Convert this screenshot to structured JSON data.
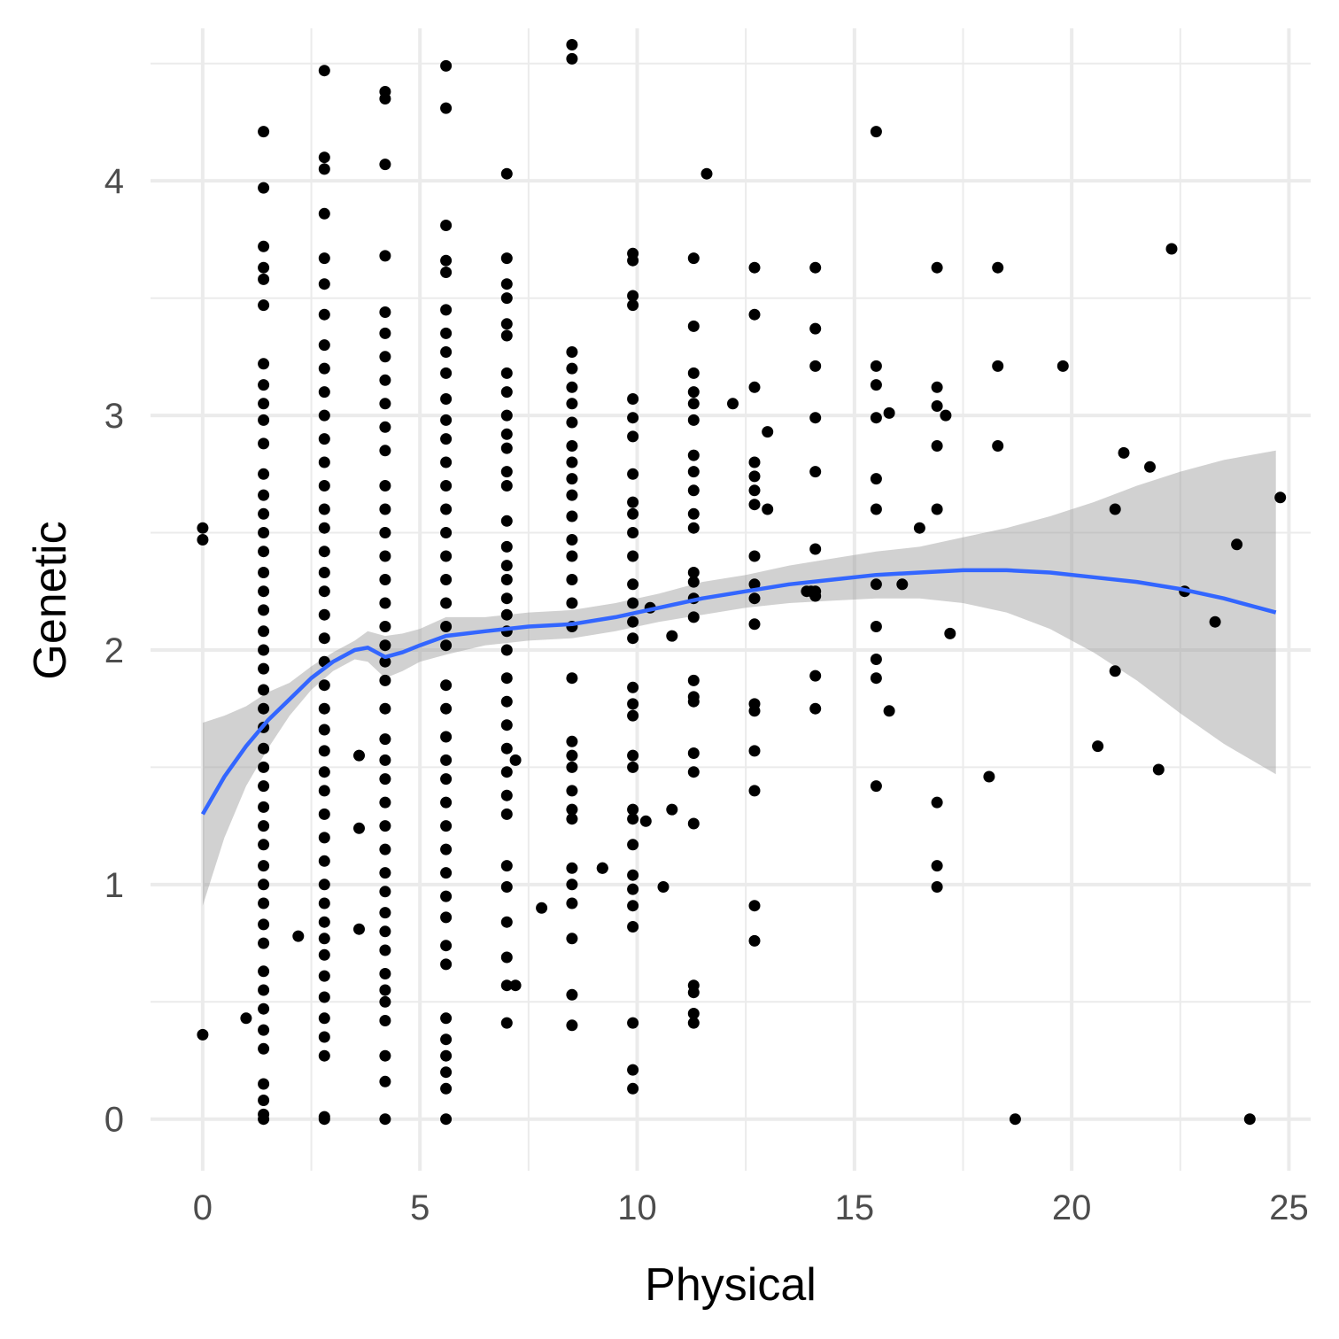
{
  "chart_data": {
    "type": "scatter",
    "title": "",
    "xlabel": "Physical",
    "ylabel": "Genetic",
    "xlim": [
      -1.2,
      25.5
    ],
    "ylim": [
      -0.22,
      4.65
    ],
    "x_ticks": [
      0,
      5,
      10,
      15,
      20,
      25
    ],
    "y_ticks": [
      0,
      1,
      2,
      3,
      4
    ],
    "x_tick_labels": [
      "0",
      "5",
      "10",
      "15",
      "20",
      "25"
    ],
    "y_tick_labels": [
      "0",
      "1",
      "2",
      "3",
      "4"
    ],
    "grid": true,
    "legend": "none",
    "point_color": "#000000",
    "smooth_color": "#3366FF",
    "band_color": "#999999",
    "points": [
      [
        0,
        2.52
      ],
      [
        0,
        2.47
      ],
      [
        0,
        0.36
      ],
      [
        1.0,
        0.43
      ],
      [
        2.2,
        0.78
      ],
      [
        3.6,
        1.55
      ],
      [
        3.6,
        1.24
      ],
      [
        3.6,
        0.81
      ],
      [
        7.2,
        1.53
      ],
      [
        7.2,
        0.57
      ],
      [
        7.8,
        0.9
      ],
      [
        9.2,
        1.07
      ],
      [
        10.2,
        1.27
      ],
      [
        10.3,
        2.18
      ],
      [
        10.6,
        0.99
      ],
      [
        10.8,
        2.06
      ],
      [
        10.8,
        1.32
      ],
      [
        11.6,
        4.03
      ],
      [
        12.2,
        3.05
      ],
      [
        13.0,
        2.93
      ],
      [
        13.0,
        2.6
      ],
      [
        13.9,
        2.25
      ],
      [
        14.0,
        2.25
      ],
      [
        15.8,
        3.01
      ],
      [
        15.8,
        1.74
      ],
      [
        16.1,
        2.28
      ],
      [
        16.5,
        2.52
      ],
      [
        17.1,
        3.0
      ],
      [
        17.2,
        2.07
      ],
      [
        18.1,
        1.46
      ],
      [
        18.7,
        0.0
      ],
      [
        19.8,
        3.21
      ],
      [
        20.6,
        1.59
      ],
      [
        21.0,
        2.6
      ],
      [
        21.0,
        1.91
      ],
      [
        21.2,
        2.84
      ],
      [
        21.8,
        2.78
      ],
      [
        22.0,
        1.49
      ],
      [
        22.3,
        3.71
      ],
      [
        22.6,
        2.25
      ],
      [
        23.3,
        2.12
      ],
      [
        23.8,
        2.45
      ],
      [
        24.1,
        0.0
      ],
      [
        24.8,
        2.65
      ],
      [
        9.2,
        1.07
      ],
      [
        1.4,
        4.21
      ],
      [
        1.4,
        3.97
      ],
      [
        1.4,
        3.72
      ],
      [
        1.4,
        3.63
      ],
      [
        1.4,
        3.58
      ],
      [
        1.4,
        3.47
      ],
      [
        1.4,
        3.22
      ],
      [
        1.4,
        3.13
      ],
      [
        1.4,
        3.05
      ],
      [
        1.4,
        2.98
      ],
      [
        1.4,
        2.88
      ],
      [
        1.4,
        2.75
      ],
      [
        1.4,
        2.66
      ],
      [
        1.4,
        2.58
      ],
      [
        1.4,
        2.5
      ],
      [
        1.4,
        2.42
      ],
      [
        1.4,
        2.33
      ],
      [
        1.4,
        2.25
      ],
      [
        1.4,
        2.17
      ],
      [
        1.4,
        2.08
      ],
      [
        1.4,
        2.0
      ],
      [
        1.4,
        1.92
      ],
      [
        1.4,
        1.83
      ],
      [
        1.4,
        1.75
      ],
      [
        1.4,
        1.67
      ],
      [
        1.4,
        1.58
      ],
      [
        1.4,
        1.5
      ],
      [
        1.4,
        1.42
      ],
      [
        1.4,
        1.33
      ],
      [
        1.4,
        1.25
      ],
      [
        1.4,
        1.17
      ],
      [
        1.4,
        1.08
      ],
      [
        1.4,
        1.0
      ],
      [
        1.4,
        0.92
      ],
      [
        1.4,
        0.83
      ],
      [
        1.4,
        0.75
      ],
      [
        1.4,
        0.63
      ],
      [
        1.4,
        0.55
      ],
      [
        1.4,
        0.47
      ],
      [
        1.4,
        0.38
      ],
      [
        1.4,
        0.3
      ],
      [
        1.4,
        0.15
      ],
      [
        1.4,
        0.08
      ],
      [
        1.4,
        0.02
      ],
      [
        1.4,
        0.0
      ],
      [
        2.8,
        4.47
      ],
      [
        2.8,
        4.1
      ],
      [
        2.8,
        4.05
      ],
      [
        2.8,
        3.86
      ],
      [
        2.8,
        3.67
      ],
      [
        2.8,
        3.56
      ],
      [
        2.8,
        3.43
      ],
      [
        2.8,
        3.3
      ],
      [
        2.8,
        3.2
      ],
      [
        2.8,
        3.1
      ],
      [
        2.8,
        3.0
      ],
      [
        2.8,
        2.9
      ],
      [
        2.8,
        2.8
      ],
      [
        2.8,
        2.7
      ],
      [
        2.8,
        2.6
      ],
      [
        2.8,
        2.52
      ],
      [
        2.8,
        2.42
      ],
      [
        2.8,
        2.33
      ],
      [
        2.8,
        2.25
      ],
      [
        2.8,
        2.15
      ],
      [
        2.8,
        2.05
      ],
      [
        2.8,
        1.95
      ],
      [
        2.8,
        1.85
      ],
      [
        2.8,
        1.75
      ],
      [
        2.8,
        1.66
      ],
      [
        2.8,
        1.57
      ],
      [
        2.8,
        1.48
      ],
      [
        2.8,
        1.4
      ],
      [
        2.8,
        1.3
      ],
      [
        2.8,
        1.2
      ],
      [
        2.8,
        1.1
      ],
      [
        2.8,
        1.0
      ],
      [
        2.8,
        0.92
      ],
      [
        2.8,
        0.84
      ],
      [
        2.8,
        0.77
      ],
      [
        2.8,
        0.7
      ],
      [
        2.8,
        0.61
      ],
      [
        2.8,
        0.52
      ],
      [
        2.8,
        0.43
      ],
      [
        2.8,
        0.35
      ],
      [
        2.8,
        0.27
      ],
      [
        2.8,
        0.01
      ],
      [
        2.8,
        0.0
      ],
      [
        4.2,
        4.38
      ],
      [
        4.2,
        4.35
      ],
      [
        4.2,
        4.07
      ],
      [
        4.2,
        3.68
      ],
      [
        4.2,
        3.44
      ],
      [
        4.2,
        3.35
      ],
      [
        4.2,
        3.25
      ],
      [
        4.2,
        3.15
      ],
      [
        4.2,
        3.05
      ],
      [
        4.2,
        2.95
      ],
      [
        4.2,
        2.85
      ],
      [
        4.2,
        2.7
      ],
      [
        4.2,
        2.6
      ],
      [
        4.2,
        2.5
      ],
      [
        4.2,
        2.4
      ],
      [
        4.2,
        2.3
      ],
      [
        4.2,
        2.2
      ],
      [
        4.2,
        2.1
      ],
      [
        4.2,
        2.02
      ],
      [
        4.2,
        1.95
      ],
      [
        4.2,
        1.87
      ],
      [
        4.2,
        1.75
      ],
      [
        4.2,
        1.62
      ],
      [
        4.2,
        1.53
      ],
      [
        4.2,
        1.45
      ],
      [
        4.2,
        1.35
      ],
      [
        4.2,
        1.25
      ],
      [
        4.2,
        1.15
      ],
      [
        4.2,
        1.05
      ],
      [
        4.2,
        0.97
      ],
      [
        4.2,
        0.88
      ],
      [
        4.2,
        0.8
      ],
      [
        4.2,
        0.72
      ],
      [
        4.2,
        0.62
      ],
      [
        4.2,
        0.55
      ],
      [
        4.2,
        0.5
      ],
      [
        4.2,
        0.42
      ],
      [
        4.2,
        0.27
      ],
      [
        4.2,
        0.16
      ],
      [
        4.2,
        0.0
      ],
      [
        5.6,
        4.49
      ],
      [
        5.6,
        4.31
      ],
      [
        5.6,
        3.81
      ],
      [
        5.6,
        3.66
      ],
      [
        5.6,
        3.61
      ],
      [
        5.6,
        3.45
      ],
      [
        5.6,
        3.35
      ],
      [
        5.6,
        3.27
      ],
      [
        5.6,
        3.18
      ],
      [
        5.6,
        3.07
      ],
      [
        5.6,
        2.98
      ],
      [
        5.6,
        2.9
      ],
      [
        5.6,
        2.8
      ],
      [
        5.6,
        2.7
      ],
      [
        5.6,
        2.6
      ],
      [
        5.6,
        2.5
      ],
      [
        5.6,
        2.4
      ],
      [
        5.6,
        2.3
      ],
      [
        5.6,
        2.2
      ],
      [
        5.6,
        2.1
      ],
      [
        5.6,
        2.02
      ],
      [
        5.6,
        1.85
      ],
      [
        5.6,
        1.75
      ],
      [
        5.6,
        1.63
      ],
      [
        5.6,
        1.53
      ],
      [
        5.6,
        1.45
      ],
      [
        5.6,
        1.35
      ],
      [
        5.6,
        1.25
      ],
      [
        5.6,
        1.15
      ],
      [
        5.6,
        1.05
      ],
      [
        5.6,
        0.95
      ],
      [
        5.6,
        0.86
      ],
      [
        5.6,
        0.74
      ],
      [
        5.6,
        0.66
      ],
      [
        5.6,
        0.43
      ],
      [
        5.6,
        0.34
      ],
      [
        5.6,
        0.27
      ],
      [
        5.6,
        0.2
      ],
      [
        5.6,
        0.13
      ],
      [
        5.6,
        0.0
      ],
      [
        7.0,
        4.03
      ],
      [
        7.0,
        3.67
      ],
      [
        7.0,
        3.56
      ],
      [
        7.0,
        3.5
      ],
      [
        7.0,
        3.39
      ],
      [
        7.0,
        3.34
      ],
      [
        7.0,
        3.18
      ],
      [
        7.0,
        3.1
      ],
      [
        7.0,
        3.0
      ],
      [
        7.0,
        2.92
      ],
      [
        7.0,
        2.86
      ],
      [
        7.0,
        2.76
      ],
      [
        7.0,
        2.7
      ],
      [
        7.0,
        2.55
      ],
      [
        7.0,
        2.44
      ],
      [
        7.0,
        2.36
      ],
      [
        7.0,
        2.3
      ],
      [
        7.0,
        2.22
      ],
      [
        7.0,
        2.15
      ],
      [
        7.0,
        2.08
      ],
      [
        7.0,
        2.0
      ],
      [
        7.0,
        1.88
      ],
      [
        7.0,
        1.78
      ],
      [
        7.0,
        1.68
      ],
      [
        7.0,
        1.58
      ],
      [
        7.0,
        1.48
      ],
      [
        7.0,
        1.38
      ],
      [
        7.0,
        1.3
      ],
      [
        7.0,
        1.08
      ],
      [
        7.0,
        0.99
      ],
      [
        7.0,
        0.84
      ],
      [
        7.0,
        0.69
      ],
      [
        7.0,
        0.57
      ],
      [
        7.0,
        0.41
      ],
      [
        8.5,
        4.58
      ],
      [
        8.5,
        4.52
      ],
      [
        8.5,
        3.27
      ],
      [
        8.5,
        3.2
      ],
      [
        8.5,
        3.12
      ],
      [
        8.5,
        3.05
      ],
      [
        8.5,
        2.97
      ],
      [
        8.5,
        2.87
      ],
      [
        8.5,
        2.8
      ],
      [
        8.5,
        2.73
      ],
      [
        8.5,
        2.66
      ],
      [
        8.5,
        2.57
      ],
      [
        8.5,
        2.47
      ],
      [
        8.5,
        2.4
      ],
      [
        8.5,
        2.3
      ],
      [
        8.5,
        2.2
      ],
      [
        8.5,
        2.1
      ],
      [
        8.5,
        1.88
      ],
      [
        8.5,
        1.61
      ],
      [
        8.5,
        1.55
      ],
      [
        8.5,
        1.5
      ],
      [
        8.5,
        1.4
      ],
      [
        8.5,
        1.32
      ],
      [
        8.5,
        1.28
      ],
      [
        8.5,
        1.07
      ],
      [
        8.5,
        1.0
      ],
      [
        8.5,
        0.92
      ],
      [
        8.5,
        0.77
      ],
      [
        8.5,
        0.53
      ],
      [
        8.5,
        0.4
      ],
      [
        9.9,
        3.69
      ],
      [
        9.9,
        3.66
      ],
      [
        9.9,
        3.51
      ],
      [
        9.9,
        3.47
      ],
      [
        9.9,
        3.07
      ],
      [
        9.9,
        2.99
      ],
      [
        9.9,
        2.91
      ],
      [
        9.9,
        2.75
      ],
      [
        9.9,
        2.63
      ],
      [
        9.9,
        2.58
      ],
      [
        9.9,
        2.5
      ],
      [
        9.9,
        2.4
      ],
      [
        9.9,
        2.28
      ],
      [
        9.9,
        2.2
      ],
      [
        9.9,
        2.12
      ],
      [
        9.9,
        2.05
      ],
      [
        9.9,
        1.84
      ],
      [
        9.9,
        1.77
      ],
      [
        9.9,
        1.72
      ],
      [
        9.9,
        1.55
      ],
      [
        9.9,
        1.5
      ],
      [
        9.9,
        1.32
      ],
      [
        9.9,
        1.28
      ],
      [
        9.9,
        1.17
      ],
      [
        9.9,
        1.04
      ],
      [
        9.9,
        0.98
      ],
      [
        9.9,
        0.91
      ],
      [
        9.9,
        0.82
      ],
      [
        9.9,
        0.41
      ],
      [
        9.9,
        0.21
      ],
      [
        9.9,
        0.13
      ],
      [
        11.3,
        3.67
      ],
      [
        11.3,
        3.38
      ],
      [
        11.3,
        3.18
      ],
      [
        11.3,
        3.1
      ],
      [
        11.3,
        3.05
      ],
      [
        11.3,
        2.98
      ],
      [
        11.3,
        2.83
      ],
      [
        11.3,
        2.76
      ],
      [
        11.3,
        2.68
      ],
      [
        11.3,
        2.58
      ],
      [
        11.3,
        2.52
      ],
      [
        11.3,
        2.33
      ],
      [
        11.3,
        2.29
      ],
      [
        11.3,
        2.22
      ],
      [
        11.3,
        2.14
      ],
      [
        11.3,
        1.87
      ],
      [
        11.3,
        1.8
      ],
      [
        11.3,
        1.78
      ],
      [
        11.3,
        1.56
      ],
      [
        11.3,
        1.48
      ],
      [
        11.3,
        1.26
      ],
      [
        11.3,
        0.57
      ],
      [
        11.3,
        0.54
      ],
      [
        11.3,
        0.45
      ],
      [
        11.3,
        0.41
      ],
      [
        12.7,
        3.63
      ],
      [
        12.7,
        3.43
      ],
      [
        12.7,
        3.12
      ],
      [
        12.7,
        2.8
      ],
      [
        12.7,
        2.74
      ],
      [
        12.7,
        2.68
      ],
      [
        12.7,
        2.62
      ],
      [
        12.7,
        2.4
      ],
      [
        12.7,
        2.28
      ],
      [
        12.7,
        2.22
      ],
      [
        12.7,
        2.11
      ],
      [
        12.7,
        1.77
      ],
      [
        12.7,
        1.74
      ],
      [
        12.7,
        1.57
      ],
      [
        12.7,
        1.4
      ],
      [
        12.7,
        0.91
      ],
      [
        12.7,
        0.76
      ],
      [
        14.1,
        3.63
      ],
      [
        14.1,
        3.37
      ],
      [
        14.1,
        3.21
      ],
      [
        14.1,
        2.99
      ],
      [
        14.1,
        2.76
      ],
      [
        14.1,
        2.43
      ],
      [
        14.1,
        2.25
      ],
      [
        14.1,
        2.23
      ],
      [
        14.1,
        1.89
      ],
      [
        14.1,
        1.75
      ],
      [
        15.5,
        4.21
      ],
      [
        15.5,
        3.21
      ],
      [
        15.5,
        3.13
      ],
      [
        15.5,
        2.99
      ],
      [
        15.5,
        2.73
      ],
      [
        15.5,
        2.6
      ],
      [
        15.5,
        2.28
      ],
      [
        15.5,
        2.1
      ],
      [
        15.5,
        1.96
      ],
      [
        15.5,
        1.88
      ],
      [
        15.5,
        1.42
      ],
      [
        16.9,
        3.63
      ],
      [
        16.9,
        3.12
      ],
      [
        16.9,
        3.04
      ],
      [
        16.9,
        2.87
      ],
      [
        16.9,
        2.6
      ],
      [
        16.9,
        1.35
      ],
      [
        16.9,
        1.08
      ],
      [
        16.9,
        0.99
      ],
      [
        18.3,
        3.63
      ],
      [
        18.3,
        3.21
      ],
      [
        18.3,
        2.87
      ]
    ],
    "smooth": {
      "x": [
        0,
        0.5,
        1,
        1.5,
        2,
        2.5,
        3,
        3.5,
        3.8,
        4.2,
        4.6,
        5,
        5.6,
        6.5,
        7.5,
        8.5,
        9.5,
        10.5,
        11.5,
        12.5,
        13.5,
        14.5,
        15.5,
        16.5,
        17.5,
        18.5,
        19.5,
        20.5,
        21.5,
        22.5,
        23.5,
        24.7
      ],
      "y": [
        1.3,
        1.46,
        1.59,
        1.7,
        1.79,
        1.88,
        1.95,
        2.0,
        2.01,
        1.97,
        1.99,
        2.02,
        2.06,
        2.08,
        2.1,
        2.11,
        2.14,
        2.18,
        2.22,
        2.25,
        2.28,
        2.3,
        2.32,
        2.33,
        2.34,
        2.34,
        2.33,
        2.31,
        2.29,
        2.26,
        2.22,
        2.16
      ],
      "lower": [
        0.91,
        1.2,
        1.42,
        1.58,
        1.72,
        1.83,
        1.91,
        1.96,
        1.95,
        1.88,
        1.91,
        1.95,
        1.98,
        2.02,
        2.04,
        2.05,
        2.08,
        2.12,
        2.15,
        2.18,
        2.2,
        2.21,
        2.22,
        2.22,
        2.2,
        2.16,
        2.09,
        1.99,
        1.87,
        1.73,
        1.6,
        1.47
      ],
      "upper": [
        1.69,
        1.72,
        1.76,
        1.82,
        1.86,
        1.93,
        1.99,
        2.04,
        2.08,
        2.06,
        2.07,
        2.09,
        2.14,
        2.14,
        2.16,
        2.17,
        2.2,
        2.24,
        2.29,
        2.32,
        2.36,
        2.39,
        2.42,
        2.44,
        2.48,
        2.52,
        2.57,
        2.63,
        2.7,
        2.76,
        2.81,
        2.85
      ]
    }
  }
}
